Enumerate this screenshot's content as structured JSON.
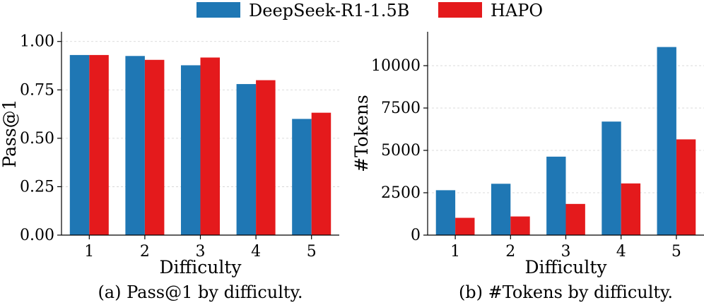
{
  "legend": {
    "items": [
      {
        "label": "DeepSeek-R1-1.5B",
        "color": "#1f77b4"
      },
      {
        "label": "HAPO",
        "color": "#e41a1c"
      }
    ]
  },
  "chart_data": [
    {
      "type": "bar",
      "caption": "(a) Pass@1 by difficulty.",
      "xlabel": "Difficulty",
      "ylabel": "Pass@1",
      "categories": [
        "1",
        "2",
        "3",
        "4",
        "5"
      ],
      "ylim": [
        0,
        1.05
      ],
      "yticks": [
        0.0,
        0.25,
        0.5,
        0.75,
        1.0
      ],
      "ytick_labels": [
        "0.00",
        "0.25",
        "0.50",
        "0.75",
        "1.00"
      ],
      "grid": true,
      "series": [
        {
          "name": "DeepSeek-R1-1.5B",
          "values": [
            0.93,
            0.925,
            0.877,
            0.78,
            0.6
          ]
        },
        {
          "name": "HAPO",
          "values": [
            0.93,
            0.905,
            0.917,
            0.8,
            0.632
          ]
        }
      ]
    },
    {
      "type": "bar",
      "caption": "(b) #Tokens by difficulty.",
      "xlabel": "Difficulty",
      "ylabel": "#Tokens",
      "categories": [
        "1",
        "2",
        "3",
        "4",
        "5"
      ],
      "ylim": [
        0,
        12000
      ],
      "yticks": [
        0,
        2500,
        5000,
        7500,
        10000
      ],
      "ytick_labels": [
        "0",
        "2500",
        "5000",
        "7500",
        "10000"
      ],
      "grid": true,
      "series": [
        {
          "name": "DeepSeek-R1-1.5B",
          "values": [
            2650,
            3030,
            4630,
            6700,
            11100
          ]
        },
        {
          "name": "HAPO",
          "values": [
            1020,
            1100,
            1840,
            3050,
            5650
          ]
        }
      ]
    }
  ]
}
